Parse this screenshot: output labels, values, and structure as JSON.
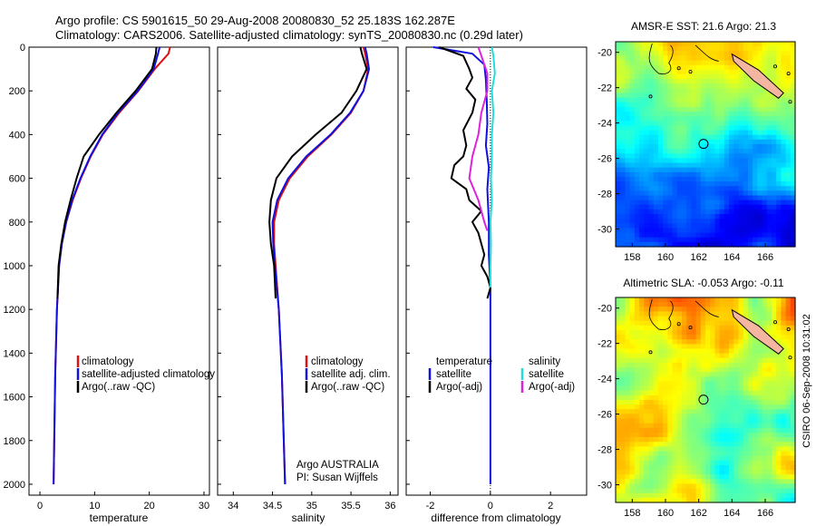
{
  "title": {
    "line1": "Argo profile: CS 5901615_50 29-Aug-2008 20080830_52 25.183S 162.287E",
    "line2": "Climatology: CARS2006. Satellite-adjusted climatology: synTS_20080830.nc (0.29d later)"
  },
  "depth_ticks": [
    "0",
    "200",
    "400",
    "600",
    "800",
    "1000",
    "1200",
    "1400",
    "1600",
    "1800",
    "2000"
  ],
  "credit": {
    "line1": "Argo AUSTRALIA",
    "line2": "PI: Susan Wijffels"
  },
  "side_stamp": "CSIRO 06-Sep-2008 10:31:02",
  "colors": {
    "climatology": "#dd1111",
    "satellite": "#1111dd",
    "argo": "#000000",
    "salinity_sat": "#22dddd",
    "salinity_argo": "#dd22dd"
  },
  "chart_data": [
    {
      "type": "line",
      "panel": "temperature",
      "xlabel": "temperature",
      "xlim": [
        -2,
        31
      ],
      "ylim": [
        0,
        2050
      ],
      "y_reversed": true,
      "xticks": [
        "0",
        "10",
        "20",
        "30"
      ],
      "legend": [
        "climatology",
        "satellite-adjusted climatology",
        "Argo(..raw -QC)"
      ],
      "series": [
        {
          "name": "climatology",
          "x": [
            23.8,
            23.5,
            21.0,
            18.0,
            14.5,
            11.5,
            9.3,
            7.5,
            6.0,
            4.8,
            4.0,
            3.5,
            3.1,
            2.8,
            2.5
          ],
          "y": [
            0,
            30,
            100,
            200,
            300,
            400,
            500,
            600,
            700,
            800,
            900,
            1000,
            1200,
            1500,
            2000
          ]
        },
        {
          "name": "satellite-adjusted climatology",
          "x": [
            21.9,
            21.6,
            20.8,
            17.9,
            14.3,
            11.4,
            9.2,
            7.4,
            5.9,
            4.8,
            4.0,
            3.5,
            3.1,
            2.8,
            2.5
          ],
          "y": [
            0,
            30,
            100,
            200,
            300,
            400,
            500,
            600,
            700,
            800,
            900,
            1000,
            1200,
            1500,
            2000
          ]
        },
        {
          "name": "Argo(..raw -QC)",
          "x": [
            21.3,
            21.2,
            20.5,
            17.5,
            14.0,
            10.8,
            8.0,
            6.7,
            5.6,
            4.6,
            3.9,
            3.4,
            3.2
          ],
          "y": [
            0,
            30,
            100,
            200,
            300,
            400,
            500,
            600,
            700,
            800,
            900,
            1000,
            1150
          ]
        }
      ]
    },
    {
      "type": "line",
      "panel": "salinity",
      "xlabel": "salinity",
      "xlim": [
        33.8,
        36.1
      ],
      "ylim": [
        0,
        2050
      ],
      "y_reversed": true,
      "xticks": [
        "34",
        "34.5",
        "35",
        "35.5",
        "36"
      ],
      "legend": [
        "climatology",
        "satellite adj. clim.",
        "Argo(..raw -QC)"
      ],
      "series": [
        {
          "name": "climatology",
          "x": [
            35.66,
            35.68,
            35.72,
            35.66,
            35.5,
            35.25,
            34.95,
            34.72,
            34.58,
            34.52,
            34.52,
            34.54,
            34.58,
            34.62,
            34.66
          ],
          "y": [
            0,
            30,
            100,
            200,
            300,
            400,
            500,
            600,
            700,
            800,
            900,
            1000,
            1200,
            1500,
            2000
          ]
        },
        {
          "name": "satellite adj. clim.",
          "x": [
            35.68,
            35.7,
            35.73,
            35.66,
            35.49,
            35.24,
            34.93,
            34.7,
            34.56,
            34.5,
            34.51,
            34.53,
            34.58,
            34.62,
            34.66
          ],
          "y": [
            0,
            30,
            100,
            200,
            300,
            400,
            500,
            600,
            700,
            800,
            900,
            1000,
            1200,
            1500,
            2000
          ]
        },
        {
          "name": "Argo(..raw -QC)",
          "x": [
            35.62,
            35.64,
            35.7,
            35.57,
            35.38,
            35.05,
            34.75,
            34.55,
            34.48,
            34.46,
            34.48,
            34.52,
            34.54
          ],
          "y": [
            0,
            30,
            100,
            200,
            300,
            400,
            500,
            600,
            700,
            800,
            900,
            1000,
            1150
          ]
        }
      ]
    },
    {
      "type": "line",
      "panel": "difference",
      "xlabel": "difference from climatology",
      "xlim": [
        -2.8,
        3.2
      ],
      "ylim": [
        0,
        2050
      ],
      "y_reversed": true,
      "xticks": [
        "-2",
        "0",
        "2"
      ],
      "legend": [
        "temperature",
        "satellite",
        "Argo(-adj)",
        "salinity",
        "satellite",
        "Argo(-adj)"
      ],
      "series": [
        {
          "name": "temperature satellite",
          "x": [
            -1.9,
            -0.6,
            -0.2,
            -0.15,
            -0.12,
            -0.1,
            -0.15,
            -0.05,
            -0.1,
            -0.05,
            -0.05,
            0,
            0,
            0
          ],
          "y": [
            0,
            30,
            80,
            150,
            250,
            350,
            450,
            550,
            650,
            800,
            950,
            1100,
            1500,
            2000
          ]
        },
        {
          "name": "temperature Argo(-adj)",
          "x": [
            -1.7,
            -0.9,
            -0.7,
            -0.6,
            -0.8,
            -0.5,
            -0.6,
            -0.9,
            -0.8,
            -0.9,
            -1.2,
            -1.3,
            -0.8,
            -0.7,
            -0.3,
            -0.6,
            -0.4,
            -0.3,
            -0.2,
            -0.3,
            -0.1,
            0,
            -0.1
          ],
          "y": [
            0,
            40,
            100,
            140,
            190,
            240,
            300,
            380,
            450,
            500,
            540,
            600,
            650,
            700,
            750,
            800,
            850,
            900,
            950,
            1000,
            1050,
            1100,
            1150
          ]
        },
        {
          "name": "salinity satellite",
          "x": [
            0.05,
            0.1,
            0.15,
            0.05,
            0.1,
            0.05,
            0.05,
            0.02,
            0.05,
            0.0,
            0.02,
            0.0,
            0.0
          ],
          "y": [
            0,
            40,
            120,
            200,
            300,
            400,
            500,
            600,
            700,
            800,
            900,
            1000,
            1100
          ]
        },
        {
          "name": "salinity Argo(-adj)",
          "x": [
            -0.4,
            -0.3,
            -0.1,
            -0.1,
            -0.3,
            -0.4,
            -0.6,
            -0.7,
            -0.4,
            -0.2,
            -0.1
          ],
          "y": [
            0,
            40,
            120,
            200,
            300,
            400,
            500,
            600,
            700,
            800,
            840
          ]
        }
      ]
    },
    {
      "type": "heatmap",
      "panel": "sst_map",
      "title": "AMSR-E SST: 21.6 Argo: 21.3",
      "xlim": [
        157,
        167.8
      ],
      "ylim": [
        -31,
        -19.4
      ],
      "xticks": [
        "158",
        "160",
        "162",
        "164",
        "166"
      ],
      "yticks": [
        "-20",
        "-22",
        "-24",
        "-26",
        "-28",
        "-30"
      ],
      "marker": {
        "lon": 162.287,
        "lat": -25.183
      }
    },
    {
      "type": "heatmap",
      "panel": "sla_map",
      "title": "Altimetric SLA: -0.053 Argo: -0.11",
      "xlim": [
        157,
        167.8
      ],
      "ylim": [
        -31,
        -19.4
      ],
      "xticks": [
        "158",
        "160",
        "162",
        "164",
        "166"
      ],
      "yticks": [
        "-20",
        "-22",
        "-24",
        "-26",
        "-28",
        "-30"
      ],
      "marker": {
        "lon": 162.287,
        "lat": -25.183
      }
    }
  ]
}
